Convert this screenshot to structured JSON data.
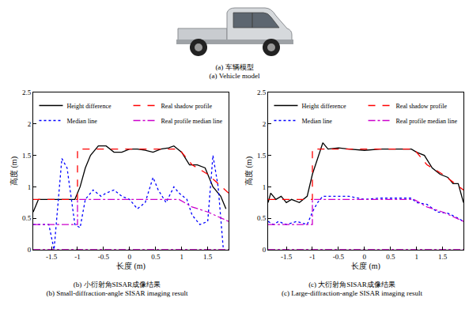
{
  "vehicle": {
    "caption": [
      "(a) 车辆模型",
      "(a) Vehicle model"
    ]
  },
  "chart_data": [
    {
      "type": "line",
      "caption": [
        "(b) 小衍射角SISAR成像结果",
        "(b) Small-diffraction-angle SISAR imaging result"
      ],
      "x_label": "长度 (m)",
      "y_label": "高度 (m)",
      "xlim": [
        -1.85,
        1.9
      ],
      "xticks": [
        -1.5,
        -1,
        -0.5,
        0,
        0.5,
        1,
        1.5
      ],
      "ylim": [
        0,
        2.5
      ],
      "yticks": [
        0,
        0.5,
        1,
        1.5,
        2,
        2.5
      ],
      "grid": false,
      "legend": "upper right",
      "series": [
        {
          "name": "Height difference",
          "color": "#000000",
          "line_style": "solid",
          "x": [
            -1.85,
            -1.75,
            -1.6,
            -1.4,
            -1.2,
            -1.05,
            -0.95,
            -0.85,
            -0.75,
            -0.6,
            -0.45,
            -0.3,
            -0.15,
            0,
            0.15,
            0.3,
            0.45,
            0.6,
            0.75,
            0.85,
            1.0,
            1.15,
            1.3,
            1.45,
            1.6,
            1.75,
            1.85
          ],
          "values": [
            0.6,
            0.8,
            0.8,
            0.8,
            0.8,
            0.8,
            1.0,
            1.3,
            1.5,
            1.65,
            1.65,
            1.55,
            1.55,
            1.6,
            1.6,
            1.58,
            1.55,
            1.6,
            1.62,
            1.65,
            1.55,
            1.35,
            1.35,
            1.3,
            1.0,
            0.85,
            0.65
          ]
        },
        {
          "name": "Median line",
          "color": "#0000ff",
          "line_style": "dotted",
          "x": [
            -1.85,
            -1.55,
            -1.45,
            -1.3,
            -1.2,
            -1.05,
            -0.95,
            -0.85,
            -0.7,
            -0.55,
            -0.45,
            -0.3,
            -0.15,
            0,
            0.15,
            0.3,
            0.45,
            0.55,
            0.7,
            0.85,
            0.95,
            1.1,
            1.2,
            1.35,
            1.5,
            1.6,
            1.7,
            1.8
          ],
          "values": [
            0.4,
            0.4,
            0,
            1.45,
            1.3,
            0.4,
            0.35,
            0.8,
            0.95,
            0.85,
            0.9,
            0.95,
            0.85,
            0.8,
            0.65,
            0.75,
            1.15,
            0.95,
            0.75,
            1.0,
            0.9,
            0.8,
            0.55,
            0.4,
            0.45,
            1.5,
            1.0,
            0
          ]
        },
        {
          "name": "Real shadow profile",
          "color": "#ff0000",
          "line_style": "dashed",
          "x": [
            -1.85,
            -1.0,
            -1.0,
            0.95,
            1.2,
            1.5,
            1.9
          ],
          "values": [
            0.8,
            0.8,
            1.6,
            1.6,
            1.35,
            1.2,
            0.9
          ]
        },
        {
          "name": "Real profile median line",
          "color": "#cc00cc",
          "line_style": "dashdot",
          "x": [
            -1.85,
            1.9,
            1.9,
            -1.85,
            -1.0,
            -1.0,
            0.95,
            1.2,
            1.5,
            1.9
          ],
          "values": [
            0,
            0,
            null,
            0.4,
            0.4,
            0.8,
            0.8,
            0.68,
            0.6,
            0.45
          ]
        }
      ]
    },
    {
      "type": "line",
      "caption": [
        "(c) 大衍射角SISAR成像结果",
        "(c) Large-diffraction-angle SISAR imaging result"
      ],
      "x_label": "长度 (m)",
      "y_label": "高度 (m)",
      "xlim": [
        -1.85,
        1.9
      ],
      "xticks": [
        -1.5,
        -1,
        -0.5,
        0,
        0.5,
        1,
        1.5
      ],
      "ylim": [
        0,
        2.5
      ],
      "yticks": [
        0,
        0.5,
        1,
        1.5,
        2,
        2.5
      ],
      "grid": false,
      "legend": "upper right",
      "series": [
        {
          "name": "Height difference",
          "color": "#000000",
          "line_style": "solid",
          "x": [
            -1.85,
            -1.8,
            -1.7,
            -1.6,
            -1.5,
            -1.4,
            -1.25,
            -1.1,
            -1.0,
            -0.9,
            -0.8,
            -0.7,
            -0.5,
            -0.3,
            0,
            0.3,
            0.6,
            0.9,
            1.0,
            1.15,
            1.3,
            1.45,
            1.6,
            1.7,
            1.8,
            1.9
          ],
          "values": [
            0.75,
            0.9,
            0.8,
            0.85,
            0.75,
            0.8,
            0.75,
            0.85,
            1.2,
            1.45,
            1.7,
            1.6,
            1.62,
            1.6,
            1.58,
            1.6,
            1.6,
            1.6,
            1.55,
            1.5,
            1.3,
            1.2,
            1.15,
            1.05,
            1.05,
            0.75
          ]
        },
        {
          "name": "Median line",
          "color": "#0000ff",
          "line_style": "dotted",
          "x": [
            -1.85,
            -1.75,
            -1.65,
            -1.5,
            -1.3,
            -1.1,
            -1.0,
            -0.9,
            -0.8,
            -0.6,
            -0.3,
            0,
            0.3,
            0.6,
            0.9,
            1.0,
            1.2,
            1.4,
            1.6,
            1.8,
            1.9
          ],
          "values": [
            0.45,
            0.4,
            0.45,
            0.4,
            0.45,
            0.4,
            0.6,
            0.75,
            0.85,
            0.85,
            0.85,
            0.8,
            0.82,
            0.82,
            0.82,
            0.75,
            0.72,
            0.6,
            0.58,
            0.5,
            0.45
          ]
        },
        {
          "name": "Real shadow profile",
          "color": "#ff0000",
          "line_style": "dashed",
          "x": [
            -1.85,
            -1.0,
            -1.0,
            0.95,
            1.2,
            1.5,
            1.9
          ],
          "values": [
            0.8,
            0.8,
            1.6,
            1.6,
            1.35,
            1.2,
            0.95
          ]
        },
        {
          "name": "Real profile median line",
          "color": "#cc00cc",
          "line_style": "dashdot",
          "x": [
            -1.85,
            1.9,
            1.9,
            -1.85,
            -1.0,
            -1.0,
            0.95,
            1.2,
            1.5,
            1.9
          ],
          "values": [
            0,
            0,
            null,
            0.4,
            0.4,
            0.8,
            0.8,
            0.68,
            0.6,
            0.45
          ]
        }
      ]
    }
  ]
}
